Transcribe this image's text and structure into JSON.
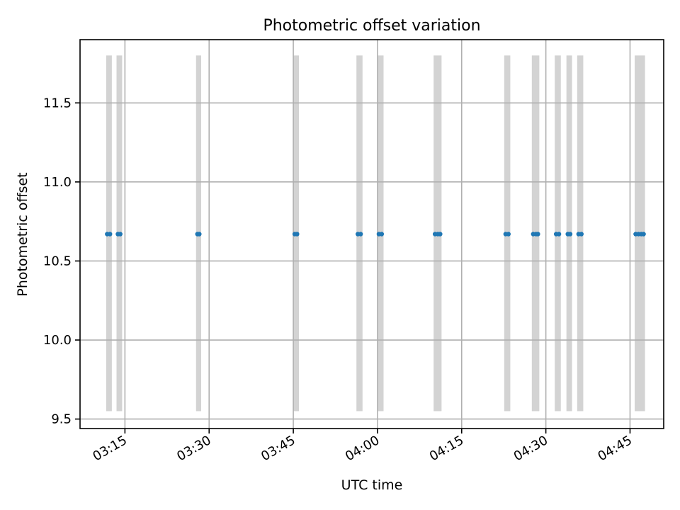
{
  "chart_data": {
    "type": "scatter",
    "title": "Photometric offset variation",
    "xlabel": "UTC time",
    "ylabel": "Photometric offset",
    "xlim": [
      "03:07:00",
      "04:51:00"
    ],
    "ylim": [
      9.44,
      11.9
    ],
    "x_ticks": [
      "03:15",
      "03:30",
      "03:45",
      "04:00",
      "04:15",
      "04:30",
      "04:45"
    ],
    "y_ticks": [
      9.5,
      10.0,
      10.5,
      11.0,
      11.5
    ],
    "grid": true,
    "colors": {
      "points": "#1f77b4",
      "bands": "#d3d3d3",
      "grid": "#b0b0b0"
    },
    "band_y_range": [
      9.55,
      11.8
    ],
    "bands": [
      {
        "start": "03:11:40",
        "end": "03:12:40"
      },
      {
        "start": "03:13:30",
        "end": "03:14:30"
      },
      {
        "start": "03:27:40",
        "end": "03:28:35"
      },
      {
        "start": "03:45:00",
        "end": "03:46:00"
      },
      {
        "start": "03:56:15",
        "end": "03:57:20"
      },
      {
        "start": "04:00:00",
        "end": "04:01:05"
      },
      {
        "start": "04:10:00",
        "end": "04:11:25"
      },
      {
        "start": "04:22:35",
        "end": "04:23:40"
      },
      {
        "start": "04:27:30",
        "end": "04:28:50"
      },
      {
        "start": "04:31:35",
        "end": "04:32:40"
      },
      {
        "start": "04:33:40",
        "end": "04:34:40"
      },
      {
        "start": "04:35:35",
        "end": "04:36:40"
      },
      {
        "start": "04:45:50",
        "end": "04:47:40"
      }
    ],
    "points": [
      {
        "x": "03:11:50",
        "y": 10.67
      },
      {
        "x": "03:12:20",
        "y": 10.67
      },
      {
        "x": "03:13:45",
        "y": 10.67
      },
      {
        "x": "03:14:10",
        "y": 10.67
      },
      {
        "x": "03:27:55",
        "y": 10.67
      },
      {
        "x": "03:28:15",
        "y": 10.67
      },
      {
        "x": "03:45:15",
        "y": 10.67
      },
      {
        "x": "03:45:40",
        "y": 10.67
      },
      {
        "x": "03:56:30",
        "y": 10.67
      },
      {
        "x": "03:57:00",
        "y": 10.67
      },
      {
        "x": "04:00:15",
        "y": 10.67
      },
      {
        "x": "04:00:45",
        "y": 10.67
      },
      {
        "x": "04:10:15",
        "y": 10.67
      },
      {
        "x": "04:10:45",
        "y": 10.67
      },
      {
        "x": "04:11:10",
        "y": 10.67
      },
      {
        "x": "04:22:50",
        "y": 10.67
      },
      {
        "x": "04:23:20",
        "y": 10.67
      },
      {
        "x": "04:27:45",
        "y": 10.67
      },
      {
        "x": "04:28:15",
        "y": 10.67
      },
      {
        "x": "04:28:35",
        "y": 10.67
      },
      {
        "x": "04:31:50",
        "y": 10.67
      },
      {
        "x": "04:32:20",
        "y": 10.67
      },
      {
        "x": "04:33:55",
        "y": 10.67
      },
      {
        "x": "04:34:20",
        "y": 10.67
      },
      {
        "x": "04:35:50",
        "y": 10.67
      },
      {
        "x": "04:36:20",
        "y": 10.67
      },
      {
        "x": "04:46:00",
        "y": 10.67
      },
      {
        "x": "04:46:30",
        "y": 10.67
      },
      {
        "x": "04:47:00",
        "y": 10.67
      },
      {
        "x": "04:47:25",
        "y": 10.67
      }
    ]
  }
}
